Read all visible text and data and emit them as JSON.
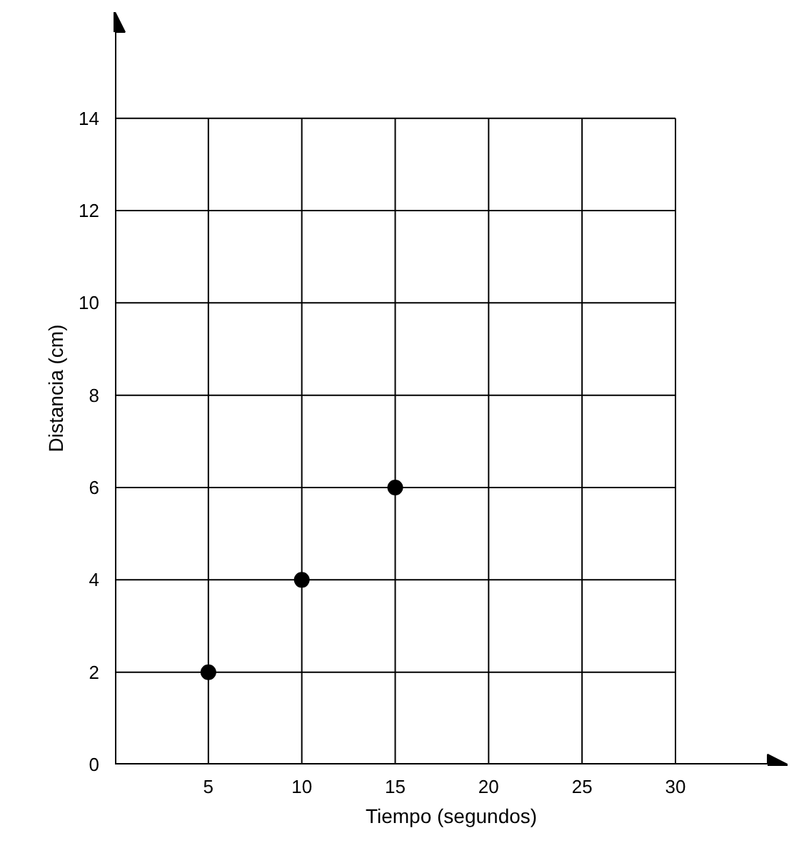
{
  "chart_data": {
    "type": "scatter",
    "xlabel": "Tiempo (segundos)",
    "ylabel": "Distancia (cm)",
    "x": [
      5,
      10,
      15
    ],
    "series": [
      {
        "color": "#000000",
        "values": [
          2,
          4,
          6
        ]
      }
    ],
    "xlim": [
      0,
      36
    ],
    "ylim": [
      0,
      16.3
    ],
    "xticks": [
      5,
      10,
      15,
      20,
      25,
      30
    ],
    "yticks": [
      0,
      2,
      4,
      6,
      8,
      10,
      12,
      14
    ],
    "grid": true,
    "marker": "circle"
  }
}
